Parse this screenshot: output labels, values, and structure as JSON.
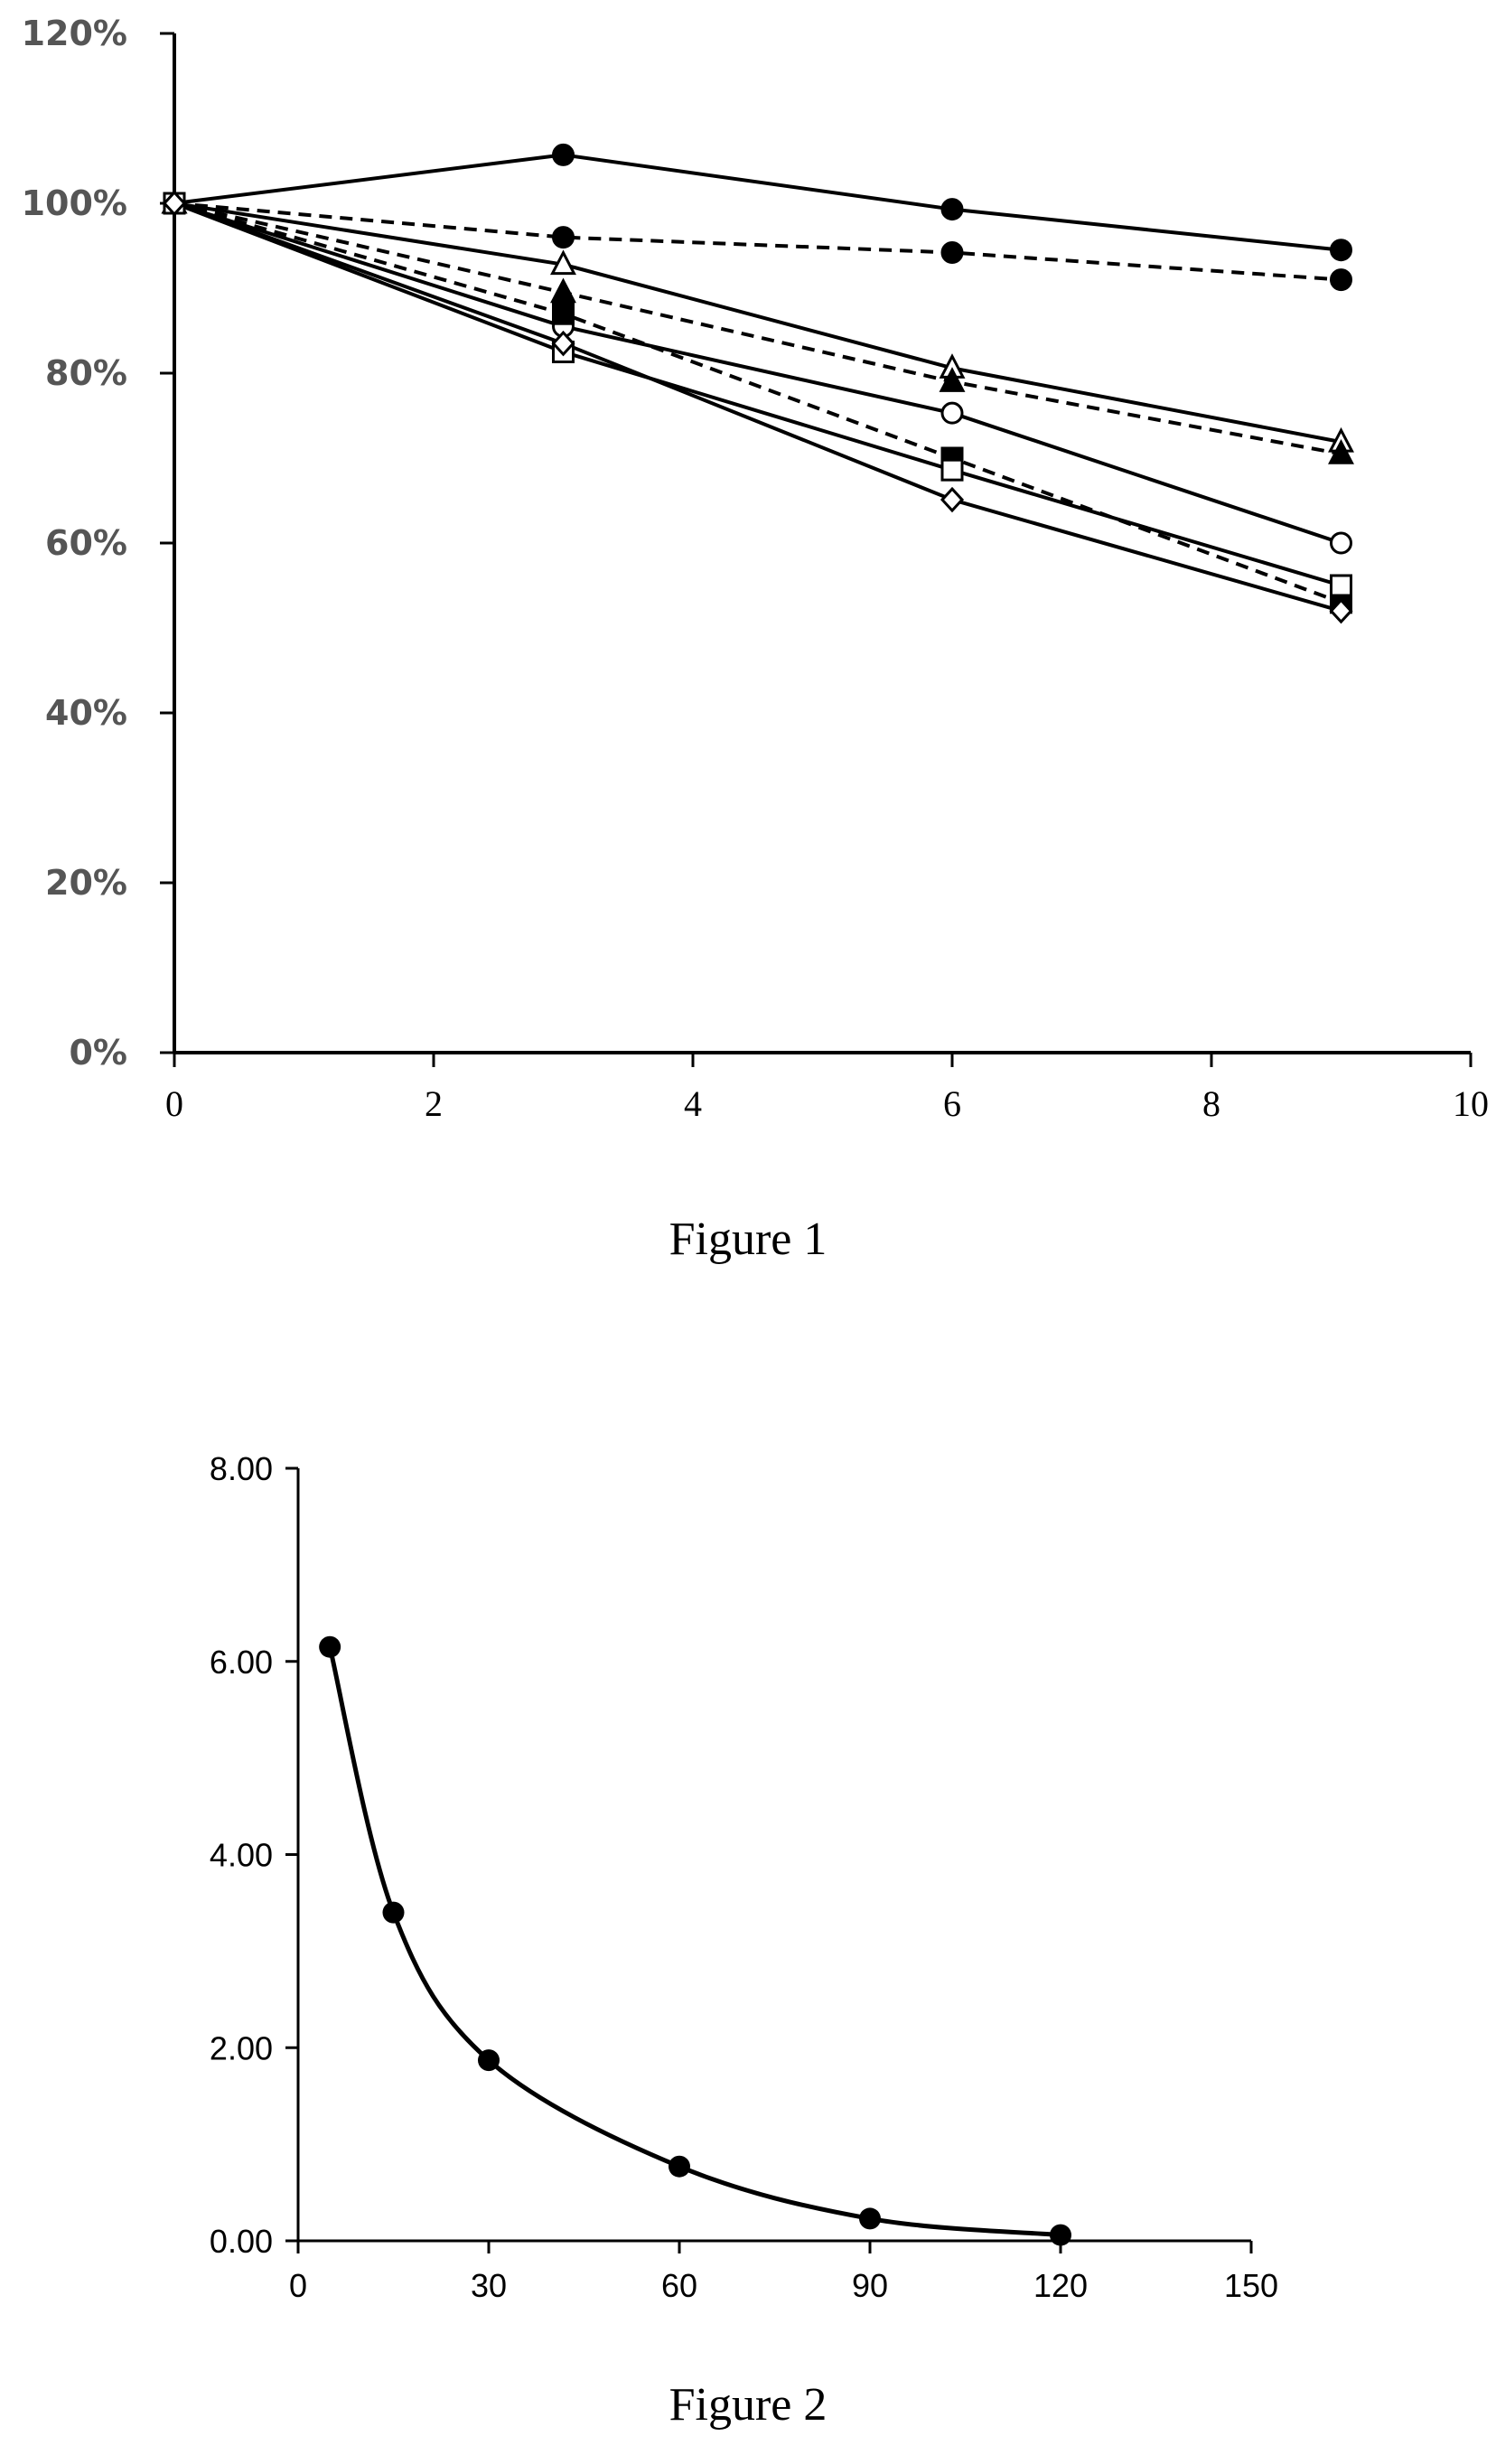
{
  "figure1": {
    "caption": "Figure 1",
    "chart_data": {
      "type": "line",
      "xlim": [
        0,
        10
      ],
      "ylim": [
        0,
        120
      ],
      "x_ticks": [
        "0",
        "2",
        "4",
        "6",
        "8",
        "10"
      ],
      "y_ticks": [
        "0%",
        "20%",
        "40%",
        "60%",
        "80%",
        "100%",
        "120%"
      ],
      "x": [
        0,
        3,
        6,
        9
      ],
      "series": [
        {
          "style": "solid",
          "marker": "filled-circle",
          "values": [
            100,
            105.7,
            99.3,
            94.5
          ]
        },
        {
          "style": "dashed",
          "marker": "filled-circle",
          "values": [
            100,
            96.0,
            94.2,
            91.0
          ]
        },
        {
          "style": "solid",
          "marker": "open-triangle",
          "values": [
            100,
            92.8,
            80.6,
            71.9
          ]
        },
        {
          "style": "dashed",
          "marker": "filled-triangle",
          "values": [
            100,
            89.5,
            79.0,
            70.5
          ]
        },
        {
          "style": "solid",
          "marker": "open-circle",
          "values": [
            100,
            85.5,
            75.3,
            60.0
          ]
        },
        {
          "style": "dashed",
          "marker": "filled-square",
          "values": [
            100,
            87.0,
            70.0,
            53.0
          ]
        },
        {
          "style": "solid",
          "marker": "open-square",
          "values": [
            100,
            82.5,
            68.6,
            55.0
          ]
        },
        {
          "style": "solid",
          "marker": "open-diamond",
          "values": [
            100,
            83.5,
            65.1,
            52.0
          ]
        }
      ]
    }
  },
  "figure2": {
    "caption": "Figure 2",
    "chart_data": {
      "type": "scatter",
      "xlim": [
        0,
        150
      ],
      "ylim": [
        0,
        8
      ],
      "x_ticks": [
        "0",
        "30",
        "60",
        "90",
        "120",
        "150"
      ],
      "y_ticks": [
        "0.00",
        "2.00",
        "4.00",
        "6.00",
        "8.00"
      ],
      "line": "smooth",
      "x": [
        5,
        15,
        30,
        60,
        90,
        120
      ],
      "values": [
        6.15,
        3.4,
        1.87,
        0.77,
        0.23,
        0.06
      ]
    }
  }
}
